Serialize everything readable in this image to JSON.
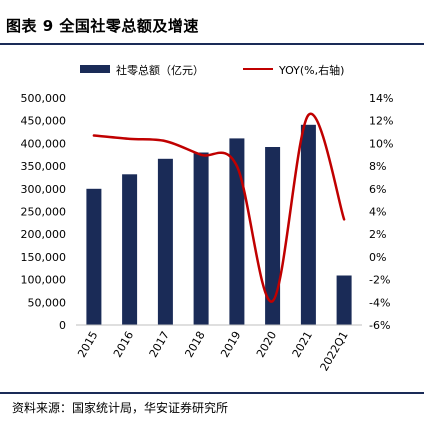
{
  "figure": {
    "title": "图表 9 全国社零总额及增速",
    "source": "资料来源：国家统计局，华安证券研究所"
  },
  "chart_data": {
    "type": "bar",
    "categories": [
      "2015",
      "2016",
      "2017",
      "2018",
      "2019",
      "2020",
      "2021",
      "2022Q1"
    ],
    "series": [
      {
        "name": "社零总额（亿元）",
        "type": "bar",
        "axis": "left",
        "color": "#1a2b57",
        "values": [
          300000,
          332000,
          366000,
          380000,
          411000,
          392000,
          441000,
          109000
        ]
      },
      {
        "name": "YOY(%,右轴)",
        "type": "line",
        "axis": "right",
        "color": "#c00000",
        "values": [
          10.7,
          10.4,
          10.2,
          9.0,
          8.0,
          -3.9,
          12.5,
          3.3
        ]
      }
    ],
    "y_left": {
      "min": 0,
      "max": 500000,
      "ticks": [
        "0",
        "50,000",
        "100,000",
        "150,000",
        "200,000",
        "250,000",
        "300,000",
        "350,000",
        "400,000",
        "450,000",
        "500,000"
      ]
    },
    "y_right": {
      "min": -6,
      "max": 14,
      "ticks": [
        "-6%",
        "-4%",
        "-2%",
        "0%",
        "2%",
        "4%",
        "6%",
        "8%",
        "10%",
        "12%",
        "14%"
      ]
    },
    "legend": "top",
    "grid": false
  }
}
